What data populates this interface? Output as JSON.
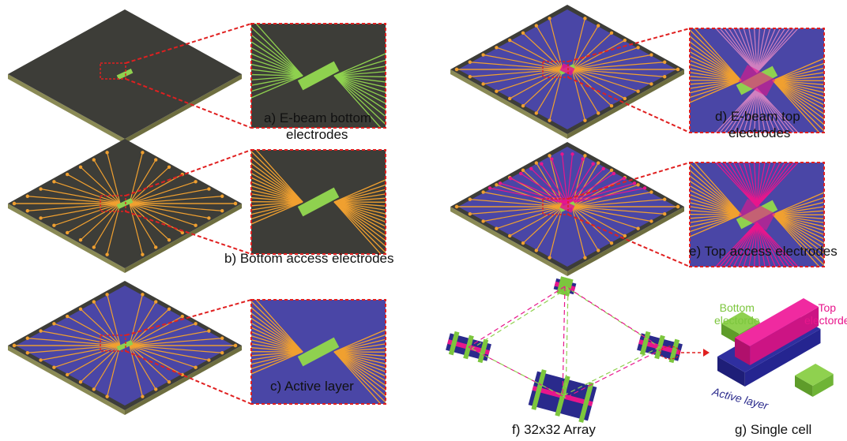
{
  "panels": [
    {
      "id": "a",
      "caption_lines": [
        "a) E-beam bottom",
        "electrodes"
      ],
      "layers": {
        "substrate": "#3d3d38",
        "active": false,
        "bottom_access": false,
        "top_beam": false,
        "top_access": false
      }
    },
    {
      "id": "b",
      "caption_lines": [
        "b) Bottom access electrodes"
      ],
      "layers": {
        "substrate": "#3d3d38",
        "active": false,
        "bottom_access": true,
        "top_beam": false,
        "top_access": false
      }
    },
    {
      "id": "c",
      "caption_lines": [
        "c) Active layer"
      ],
      "layers": {
        "substrate": "#3d3d38",
        "active": true,
        "bottom_access": true,
        "top_beam": false,
        "top_access": false
      }
    },
    {
      "id": "d",
      "caption_lines": [
        "d) E-beam top",
        "electrodes"
      ],
      "layers": {
        "substrate": "#3d3d38",
        "active": true,
        "bottom_access": true,
        "top_beam": true,
        "top_access": false
      }
    },
    {
      "id": "e",
      "caption_lines": [
        "e) Top access electrodes"
      ],
      "layers": {
        "substrate": "#3d3d38",
        "active": true,
        "bottom_access": true,
        "top_beam": true,
        "top_access": true
      }
    }
  ],
  "array_caption": "f) 32x32 Array",
  "cell_caption": "g) Single cell",
  "cell_labels": {
    "bottom": [
      "Bottom",
      "electorde"
    ],
    "top": [
      "Top",
      "electorde"
    ],
    "active": "Active layer"
  },
  "colors": {
    "substrate": "#3d3d38",
    "substrate_edge": "#8a8a55",
    "active_layer": "#4a46a6",
    "bottom_electrode": "#8fd14f",
    "bottom_access": "#f0a030",
    "top_electrode": "#e8168c",
    "zoom_frame": "#e02020",
    "cell_active": "#2a2a8c",
    "cell_bottom": "#7cc63d",
    "cell_top": "#e8168c"
  },
  "icons": [
    "zoom-frame-icon",
    "dashed-leader-icon"
  ]
}
